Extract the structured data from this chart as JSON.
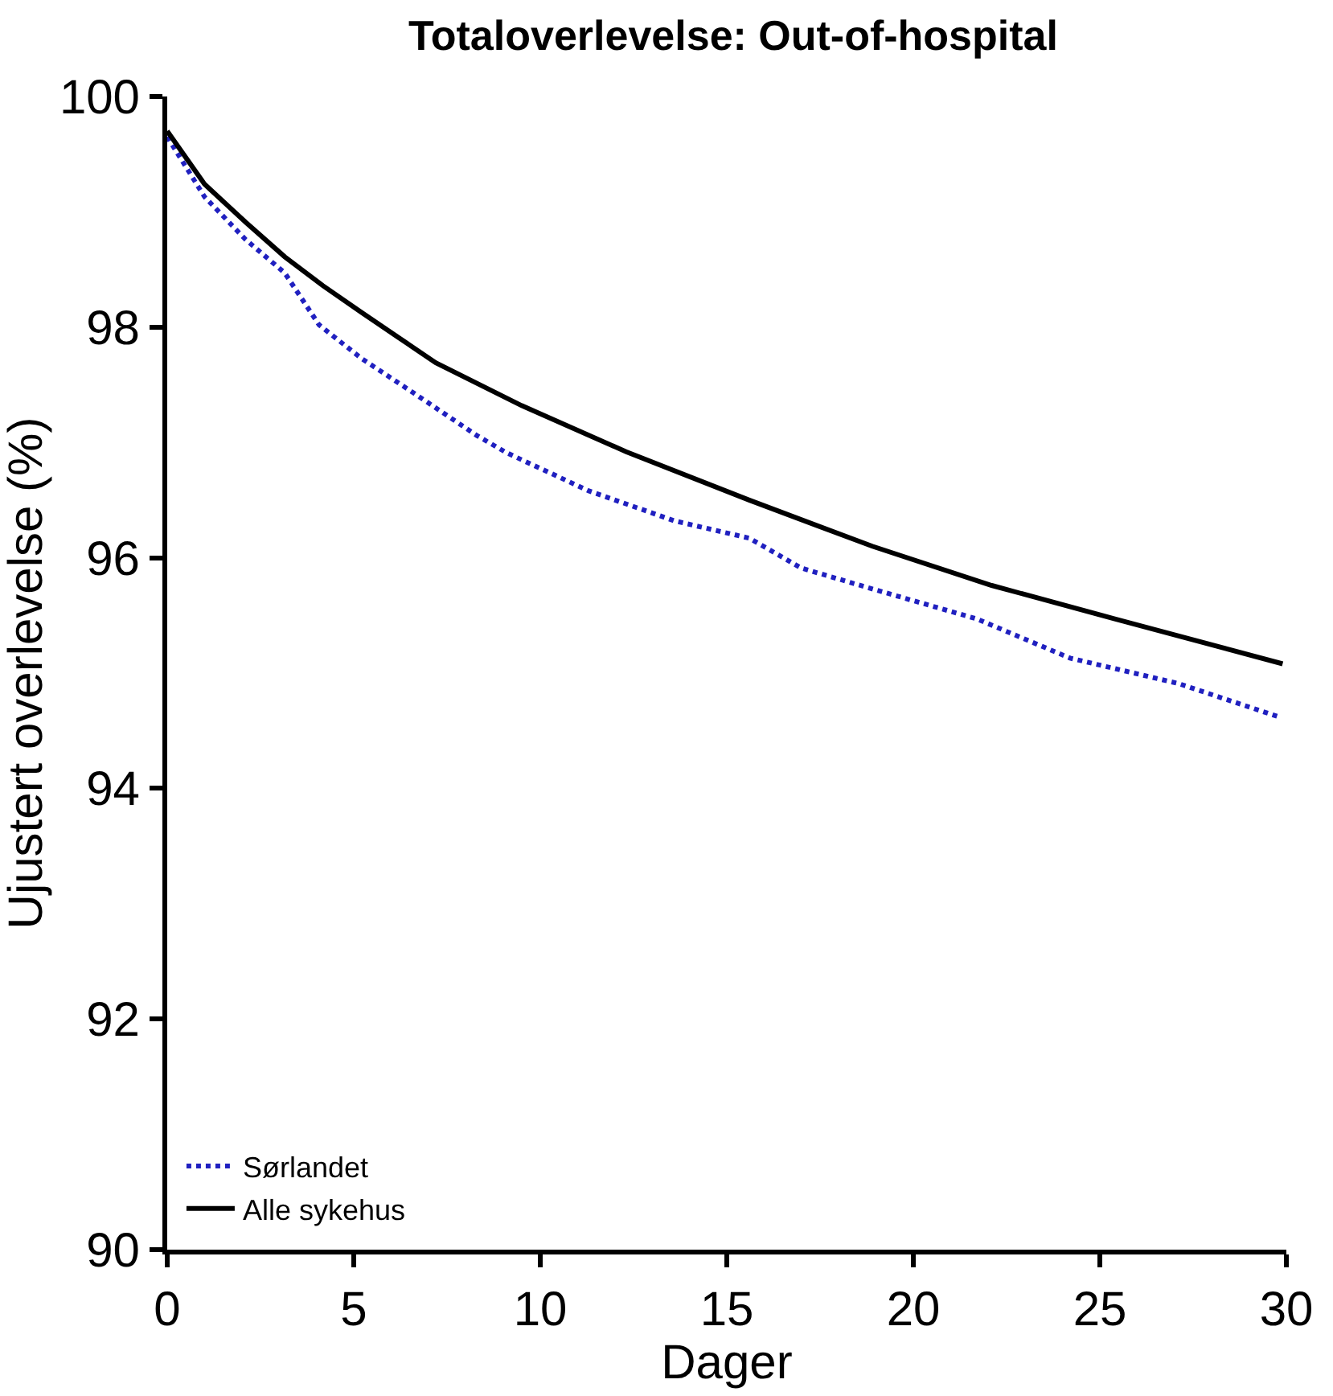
{
  "chart_data": {
    "type": "line",
    "title": "Totaloverlevelse: Out-of-hospital",
    "xlabel": "Dager",
    "ylabel": "Ujustert overlevelse (%)",
    "xlim": [
      0,
      30
    ],
    "xticks": [
      0,
      5,
      10,
      15,
      20,
      25,
      30
    ],
    "ylim": [
      90,
      100
    ],
    "yticks": [
      90,
      92,
      94,
      96,
      98,
      100
    ],
    "legend": "bottom left",
    "marker": "none",
    "series": [
      {
        "name": "Sørlandet",
        "color": "#2020c0",
        "line_style": "dotted",
        "x": [
          0,
          1.0,
          2.1,
          3.15,
          4.07,
          5.2,
          6.6,
          8.3,
          9.1,
          11.3,
          13.6,
          15.6,
          17.0,
          18.9,
          21.7,
          24.2,
          27.1,
          29.8
        ],
        "values": [
          99.65,
          99.13,
          98.76,
          98.47,
          98.02,
          97.73,
          97.43,
          97.06,
          96.91,
          96.58,
          96.32,
          96.17,
          95.91,
          95.73,
          95.47,
          95.13,
          94.91,
          94.62
        ]
      },
      {
        "name": "Alle sykehus",
        "color": "#000000",
        "line_style": "solid",
        "x": [
          0,
          1.0,
          2.1,
          3.15,
          4.17,
          5.2,
          6.2,
          7.2,
          9.5,
          12.3,
          15.6,
          18.9,
          22.1,
          25.4,
          29.9
        ],
        "values": [
          99.7,
          99.24,
          98.91,
          98.61,
          98.36,
          98.13,
          97.91,
          97.69,
          97.32,
          96.92,
          96.5,
          96.1,
          95.76,
          95.47,
          95.08
        ]
      }
    ]
  }
}
